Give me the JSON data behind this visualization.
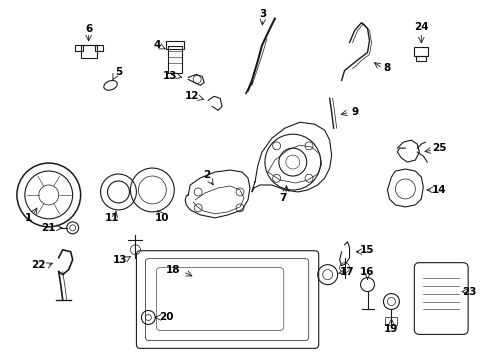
{
  "background_color": "#ffffff",
  "line_color": "#1a1a1a",
  "text_color": "#000000",
  "figsize": [
    4.89,
    3.6
  ],
  "dpi": 100,
  "label_fontsize": 7.5,
  "lw": 0.8
}
